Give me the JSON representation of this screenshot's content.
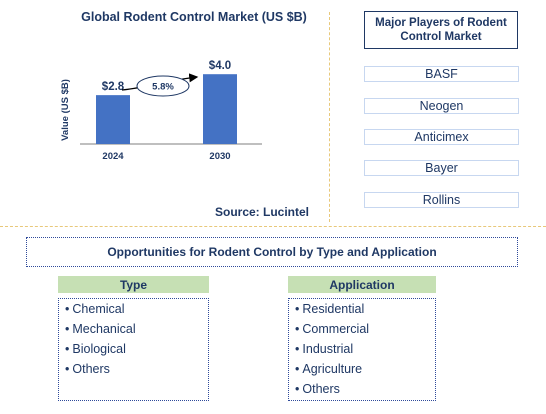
{
  "chart_data": {
    "type": "bar",
    "title": "Global Rodent Control Market (US $B)",
    "ylabel": "Value (US $B)",
    "categories": [
      "2024",
      "2030"
    ],
    "values": [
      2.8,
      4.0
    ],
    "value_labels": [
      "$2.8",
      "$4.0"
    ],
    "ylim": [
      0,
      5.1
    ],
    "grid": false,
    "bar_color": "#4472c4",
    "growth_annotation": "5.8%"
  },
  "source": "Source: Lucintel",
  "players": {
    "title": "Major Players of Rodent Control Market",
    "items": [
      "BASF",
      "Neogen",
      "Anticimex",
      "Bayer",
      "Rollins"
    ]
  },
  "opportunities": {
    "title": "Opportunities for Rodent Control by Type and Application",
    "type": {
      "header": "Type",
      "items": [
        "Chemical",
        "Mechanical",
        "Biological",
        "Others"
      ]
    },
    "application": {
      "header": "Application",
      "items": [
        "Residential",
        "Commercial",
        "Industrial",
        "Agriculture",
        "Others"
      ]
    }
  },
  "colors": {
    "title_text": "#1f3864",
    "bar": "#4472c4",
    "category_header_bg": "#c6e0b4",
    "divider": "#e8c87a"
  }
}
